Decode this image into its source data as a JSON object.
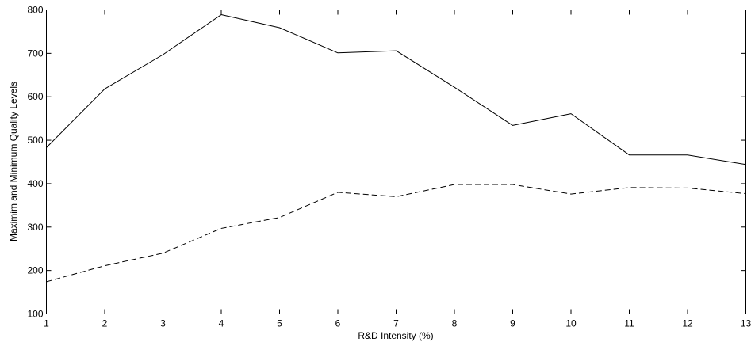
{
  "chart_data": {
    "type": "line",
    "title": "",
    "xlabel": "R&D Intensity (%)",
    "ylabel": "Maximim and Minimum Quality Levels",
    "x": [
      1,
      2,
      3,
      4,
      5,
      6,
      7,
      8,
      9,
      10,
      11,
      12,
      13
    ],
    "xlim": [
      1,
      13
    ],
    "ylim": [
      100,
      800
    ],
    "xticks": [
      1,
      2,
      3,
      4,
      5,
      6,
      7,
      8,
      9,
      10,
      11,
      12,
      13
    ],
    "yticks": [
      100,
      200,
      300,
      400,
      500,
      600,
      700,
      800
    ],
    "grid": false,
    "legend": "none",
    "series": [
      {
        "style": "solid",
        "color": "#000000",
        "values": [
          483,
          618,
          697,
          789,
          759,
          701,
          706,
          622,
          534,
          561,
          466,
          466,
          444
        ]
      },
      {
        "style": "dashed",
        "color": "#000000",
        "values": [
          174,
          211,
          240,
          297,
          322,
          380,
          370,
          398,
          398,
          376,
          391,
          390,
          377
        ]
      }
    ]
  }
}
